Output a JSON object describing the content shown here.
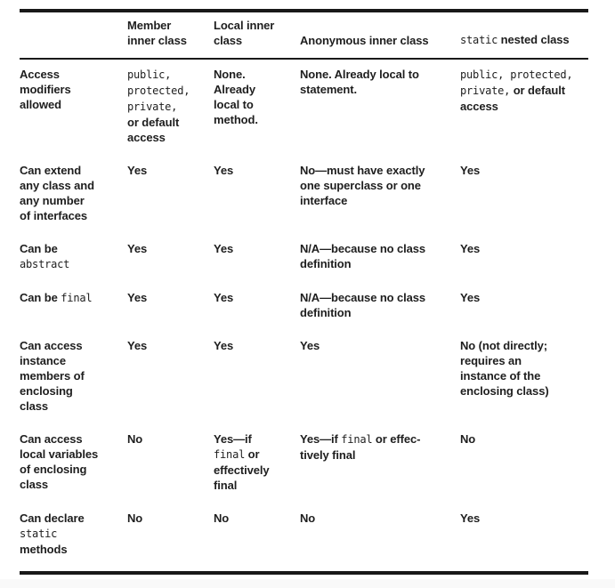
{
  "page": {
    "background_color": "#ffffff",
    "text_color": "#1e1e1e",
    "rule_color": "#191919",
    "bottom_strip_color": "#f9f9f9"
  },
  "table": {
    "name": "nested-class-types-comparison-table",
    "headers": [
      {
        "name": "row-label-column",
        "segments": []
      },
      {
        "name": "member-inner-class",
        "segments": [
          {
            "t": "Member"
          },
          {
            "br": true
          },
          {
            "t": "inner class"
          }
        ]
      },
      {
        "name": "local-inner-class",
        "segments": [
          {
            "t": "Local inner"
          },
          {
            "br": true
          },
          {
            "t": "class"
          }
        ]
      },
      {
        "name": "anonymous-inner-class",
        "segments": [
          {
            "t": "Anonymous inner class"
          }
        ]
      },
      {
        "name": "static-nested-class",
        "segments": [
          {
            "t": "static",
            "m": true
          },
          {
            "t": " nested class"
          }
        ]
      }
    ],
    "rows": [
      {
        "name": "access-modifiers-allowed",
        "label": [
          {
            "t": "Access"
          },
          {
            "br": true
          },
          {
            "t": "modifiers"
          },
          {
            "br": true
          },
          {
            "t": "allowed"
          }
        ],
        "cells": [
          [
            {
              "t": "public,",
              "m": true
            },
            {
              "br": true
            },
            {
              "t": "protected,",
              "m": true
            },
            {
              "br": true
            },
            {
              "t": "private,",
              "m": true
            },
            {
              "br": true
            },
            {
              "t": "or default"
            },
            {
              "br": true
            },
            {
              "t": "access"
            }
          ],
          [
            {
              "t": "None."
            },
            {
              "br": true
            },
            {
              "t": "Already"
            },
            {
              "br": true
            },
            {
              "t": "local to"
            },
            {
              "br": true
            },
            {
              "t": "method."
            }
          ],
          [
            {
              "t": "None. Already local to"
            },
            {
              "br": true
            },
            {
              "t": "statement."
            }
          ],
          [
            {
              "t": "public, protected,",
              "m": true
            },
            {
              "br": true
            },
            {
              "t": "private,",
              "m": true
            },
            {
              "t": " or default"
            },
            {
              "br": true
            },
            {
              "t": "access"
            }
          ]
        ]
      },
      {
        "name": "can-extend-any-class",
        "label": [
          {
            "t": "Can extend"
          },
          {
            "br": true
          },
          {
            "t": "any class and"
          },
          {
            "br": true
          },
          {
            "t": "any number"
          },
          {
            "br": true
          },
          {
            "t": "of interfaces"
          }
        ],
        "cells": [
          [
            {
              "t": "Yes"
            }
          ],
          [
            {
              "t": "Yes"
            }
          ],
          [
            {
              "t": "No—must have exactly"
            },
            {
              "br": true
            },
            {
              "t": "one superclass or one"
            },
            {
              "br": true
            },
            {
              "t": "interface"
            }
          ],
          [
            {
              "t": "Yes"
            }
          ]
        ]
      },
      {
        "name": "can-be-abstract",
        "label": [
          {
            "t": "Can be"
          },
          {
            "br": true
          },
          {
            "t": "abstract",
            "m": true
          }
        ],
        "cells": [
          [
            {
              "t": "Yes"
            }
          ],
          [
            {
              "t": "Yes"
            }
          ],
          [
            {
              "t": "N/A—because no class"
            },
            {
              "br": true
            },
            {
              "t": "definition"
            }
          ],
          [
            {
              "t": "Yes"
            }
          ]
        ]
      },
      {
        "name": "can-be-final",
        "label": [
          {
            "t": "Can be "
          },
          {
            "t": "final",
            "m": true
          }
        ],
        "cells": [
          [
            {
              "t": "Yes"
            }
          ],
          [
            {
              "t": "Yes"
            }
          ],
          [
            {
              "t": "N/A—because no class"
            },
            {
              "br": true
            },
            {
              "t": "definition"
            }
          ],
          [
            {
              "t": "Yes"
            }
          ]
        ]
      },
      {
        "name": "can-access-instance-members",
        "label": [
          {
            "t": "Can access"
          },
          {
            "br": true
          },
          {
            "t": "instance"
          },
          {
            "br": true
          },
          {
            "t": "members of"
          },
          {
            "br": true
          },
          {
            "t": "enclosing"
          },
          {
            "br": true
          },
          {
            "t": "class"
          }
        ],
        "cells": [
          [
            {
              "t": "Yes"
            }
          ],
          [
            {
              "t": "Yes"
            }
          ],
          [
            {
              "t": "Yes"
            }
          ],
          [
            {
              "t": "No (not directly;"
            },
            {
              "br": true
            },
            {
              "t": "requires an"
            },
            {
              "br": true
            },
            {
              "t": "instance of the"
            },
            {
              "br": true
            },
            {
              "t": "enclosing class)"
            }
          ]
        ]
      },
      {
        "name": "can-access-local-variables",
        "label": [
          {
            "t": "Can access"
          },
          {
            "br": true
          },
          {
            "t": "local variables"
          },
          {
            "br": true
          },
          {
            "t": "of enclosing"
          },
          {
            "br": true
          },
          {
            "t": "class"
          }
        ],
        "cells": [
          [
            {
              "t": "No"
            }
          ],
          [
            {
              "t": "Yes—if"
            },
            {
              "br": true
            },
            {
              "t": "final",
              "m": true
            },
            {
              "t": " or"
            },
            {
              "br": true
            },
            {
              "t": "effectively"
            },
            {
              "br": true
            },
            {
              "t": "final"
            }
          ],
          [
            {
              "t": "Yes—if "
            },
            {
              "t": "final",
              "m": true
            },
            {
              "t": " or effec-"
            },
            {
              "br": true
            },
            {
              "t": "tively final"
            }
          ],
          [
            {
              "t": "No"
            }
          ]
        ]
      },
      {
        "name": "can-declare-static-methods",
        "label": [
          {
            "t": "Can declare"
          },
          {
            "br": true
          },
          {
            "t": "static",
            "m": true
          },
          {
            "br": true
          },
          {
            "t": "methods"
          }
        ],
        "cells": [
          [
            {
              "t": "No"
            }
          ],
          [
            {
              "t": "No"
            }
          ],
          [
            {
              "t": "No"
            }
          ],
          [
            {
              "t": "Yes"
            }
          ]
        ]
      }
    ]
  }
}
